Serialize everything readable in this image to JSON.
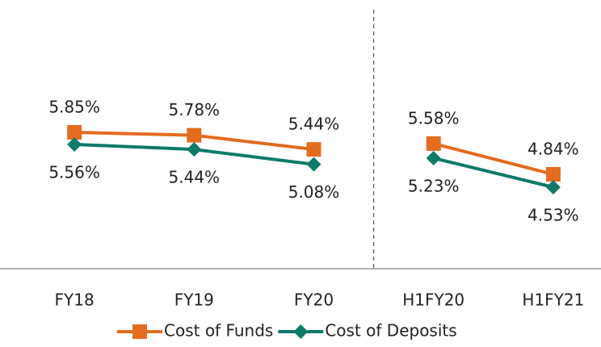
{
  "chart_data": {
    "type": "line",
    "categories": [
      "FY18",
      "FY19",
      "FY20",
      "H1FY20",
      "H1FY21"
    ],
    "divider_after": "FY20",
    "legend": "bottom",
    "series": [
      {
        "name": "Cost of Funds",
        "color": "#e36c1f",
        "marker": "square",
        "label_position": "above",
        "values": [
          5.85,
          5.78,
          5.44,
          5.58,
          4.84
        ],
        "value_labels": [
          "5.85%",
          "5.78%",
          "5.44%",
          "5.58%",
          "4.84%"
        ]
      },
      {
        "name": "Cost of Deposits",
        "color": "#0e7a69",
        "marker": "diamond",
        "label_position": "below",
        "values": [
          5.56,
          5.44,
          5.08,
          5.23,
          4.53
        ],
        "value_labels": [
          "5.56%",
          "5.44%",
          "5.08%",
          "5.23%",
          "4.53%"
        ]
      }
    ]
  }
}
